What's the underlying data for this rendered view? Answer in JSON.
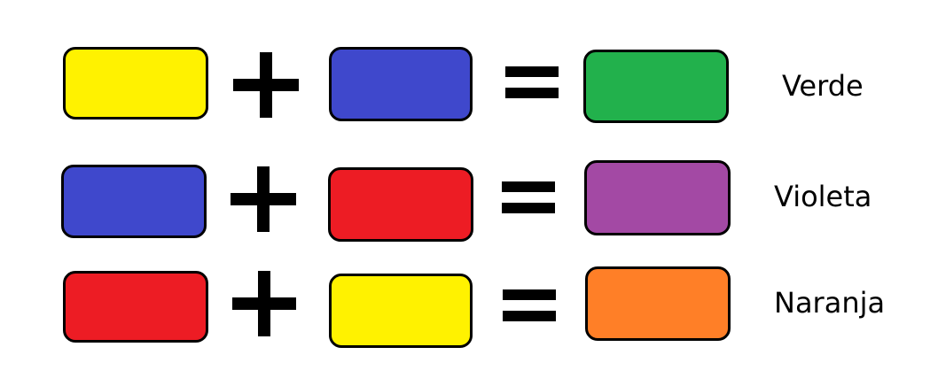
{
  "colors": {
    "yellow": "#FFF200",
    "blue": "#3F48CC",
    "red": "#ED1C24",
    "green": "#22B14C",
    "violet": "#A349A4",
    "orange": "#FF7F27"
  },
  "operators": {
    "plus": "+",
    "equals": "="
  },
  "rows": [
    {
      "left": "yellow",
      "right": "blue",
      "result": "green",
      "label": "Verde"
    },
    {
      "left": "blue",
      "right": "red",
      "result": "violet",
      "label": "Violeta"
    },
    {
      "left": "red",
      "right": "yellow",
      "result": "orange",
      "label": "Naranja"
    }
  ]
}
